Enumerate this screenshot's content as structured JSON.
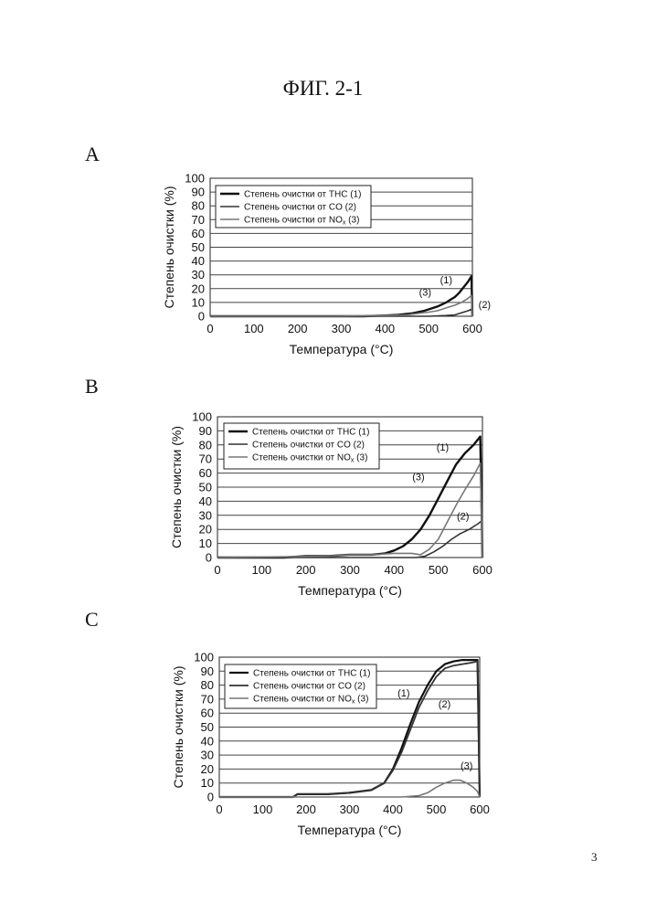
{
  "figure_title": "ФИГ. 2-1",
  "page_number": "3",
  "chart_data": [
    {
      "panel": "A",
      "type": "line",
      "xlabel": "Температура (°C)",
      "ylabel": "Степень очистки (%)",
      "xlim": [
        0,
        600
      ],
      "ylim": [
        0,
        100
      ],
      "xticks": [
        "0",
        "100",
        "200",
        "300",
        "400",
        "500",
        "600"
      ],
      "yticks": [
        "0",
        "10",
        "20",
        "30",
        "40",
        "50",
        "60",
        "70",
        "80",
        "90",
        "100"
      ],
      "grid": "horizontal",
      "legend_position": "top-left",
      "series": [
        {
          "name": "Степень очистки от THC (1)",
          "color": "#111111",
          "width": 2.4,
          "x": [
            0,
            250,
            300,
            350,
            400,
            430,
            460,
            490,
            520,
            540,
            560,
            570,
            580,
            590,
            598,
            600
          ],
          "y": [
            0,
            0,
            0,
            0,
            0.5,
            1,
            2,
            4,
            7,
            10,
            14,
            17,
            21,
            25,
            29,
            0
          ]
        },
        {
          "name": "Степень очистки от CO (2)",
          "color": "#333333",
          "width": 1.6,
          "x": [
            0,
            400,
            500,
            540,
            560,
            570,
            580,
            590,
            598,
            600
          ],
          "y": [
            0,
            0,
            0,
            0.5,
            1,
            2,
            3,
            4,
            5,
            0
          ]
        },
        {
          "name": "Степень очистки от NOx (3)",
          "color": "#777777",
          "width": 1.6,
          "x": [
            0,
            300,
            400,
            450,
            500,
            520,
            540,
            560,
            575,
            585,
            590,
            598,
            600
          ],
          "y": [
            0,
            0,
            0.5,
            1,
            3,
            4,
            6,
            8,
            10,
            12,
            13,
            15,
            0
          ]
        }
      ],
      "annotations": [
        {
          "text": "(1)",
          "x": 540,
          "y": 24
        },
        {
          "text": "(3)",
          "x": 492,
          "y": 15
        },
        {
          "text": "(2)",
          "x": 628,
          "y": 6
        }
      ],
      "legend_labels": [
        {
          "prefix": "Степень очистки от THC (1)",
          "sub": "",
          "suffix": ""
        },
        {
          "prefix": "Степень очистки от CO (2)",
          "sub": "",
          "suffix": ""
        },
        {
          "prefix": "Степень очистки от NO",
          "sub": "x",
          "suffix": " (3)"
        }
      ]
    },
    {
      "panel": "B",
      "type": "line",
      "xlabel": "Температура (°C)",
      "ylabel": "Степень очистки (%)",
      "xlim": [
        0,
        600
      ],
      "ylim": [
        0,
        100
      ],
      "xticks": [
        "0",
        "100",
        "200",
        "300",
        "400",
        "500",
        "600"
      ],
      "yticks": [
        "0",
        "10",
        "20",
        "30",
        "40",
        "50",
        "60",
        "70",
        "80",
        "90",
        "100"
      ],
      "grid": "horizontal",
      "legend_position": "top-left",
      "series": [
        {
          "name": "Степень очистки от THC (1)",
          "color": "#111111",
          "width": 2.4,
          "x": [
            0,
            150,
            200,
            250,
            300,
            330,
            350,
            380,
            400,
            420,
            440,
            460,
            480,
            500,
            520,
            540,
            560,
            580,
            595,
            600
          ],
          "y": [
            0,
            0,
            1,
            1,
            2,
            2,
            2,
            3,
            5,
            8,
            13,
            20,
            30,
            42,
            54,
            66,
            74,
            80,
            86,
            0
          ]
        },
        {
          "name": "Степень очистки от CO (2)",
          "color": "#333333",
          "width": 1.6,
          "x": [
            0,
            450,
            470,
            490,
            510,
            530,
            550,
            570,
            590,
            598,
            600
          ],
          "y": [
            0,
            0,
            1,
            4,
            8,
            13,
            17,
            20,
            24,
            26,
            0
          ]
        },
        {
          "name": "Степень очистки от NOx (3)",
          "color": "#777777",
          "width": 1.6,
          "x": [
            0,
            250,
            300,
            350,
            400,
            420,
            440,
            460,
            480,
            500,
            520,
            540,
            560,
            580,
            595,
            600
          ],
          "y": [
            0,
            1,
            2,
            2,
            3,
            3,
            3,
            2,
            6,
            13,
            25,
            37,
            48,
            58,
            67,
            0
          ]
        }
      ],
      "annotations": [
        {
          "text": "(1)",
          "x": 510,
          "y": 76
        },
        {
          "text": "(3)",
          "x": 455,
          "y": 55
        },
        {
          "text": "(2)",
          "x": 556,
          "y": 27
        }
      ],
      "legend_labels": [
        {
          "prefix": "Степень очистки от THC (1)",
          "sub": "",
          "suffix": ""
        },
        {
          "prefix": "Степень очистки от CO (2)",
          "sub": "",
          "suffix": ""
        },
        {
          "prefix": "Степень очистки от NO",
          "sub": "x",
          "suffix": " (3)"
        }
      ]
    },
    {
      "panel": "C",
      "type": "line",
      "xlabel": "Температура (°C)",
      "ylabel": "Степень очистки (%)",
      "xlim": [
        0,
        600
      ],
      "ylim": [
        0,
        100
      ],
      "xticks": [
        "0",
        "100",
        "200",
        "300",
        "400",
        "500",
        "600"
      ],
      "yticks": [
        "0",
        "10",
        "20",
        "30",
        "40",
        "50",
        "60",
        "70",
        "80",
        "90",
        "100"
      ],
      "grid": "horizontal",
      "legend_position": "top-left",
      "series": [
        {
          "name": "Степень очистки от THC (1)",
          "color": "#111111",
          "width": 2.2,
          "x": [
            0,
            170,
            180,
            250,
            300,
            350,
            380,
            400,
            420,
            440,
            460,
            480,
            500,
            520,
            540,
            560,
            580,
            595,
            600
          ],
          "y": [
            0,
            0,
            2,
            2,
            3,
            5,
            10,
            20,
            35,
            52,
            68,
            80,
            90,
            95,
            97,
            98,
            98,
            98,
            0
          ]
        },
        {
          "name": "Степень очистки от CO (2)",
          "color": "#333333",
          "width": 1.8,
          "x": [
            0,
            170,
            180,
            250,
            300,
            350,
            380,
            400,
            420,
            440,
            460,
            480,
            500,
            520,
            540,
            560,
            580,
            595,
            600
          ],
          "y": [
            0,
            0,
            2,
            2,
            3,
            5,
            10,
            19,
            32,
            48,
            64,
            76,
            86,
            92,
            94,
            95,
            96,
            97,
            0
          ]
        },
        {
          "name": "Степень очистки от NOx (3)",
          "color": "#777777",
          "width": 1.6,
          "x": [
            0,
            420,
            460,
            480,
            500,
            520,
            540,
            555,
            570,
            585,
            595,
            600
          ],
          "y": [
            0,
            0,
            1,
            3,
            7,
            10,
            12,
            12,
            10,
            7,
            4,
            0
          ]
        }
      ],
      "annotations": [
        {
          "text": "(1)",
          "x": 425,
          "y": 72
        },
        {
          "text": "(2)",
          "x": 519,
          "y": 64
        },
        {
          "text": "(3)",
          "x": 570,
          "y": 20
        }
      ],
      "legend_labels": [
        {
          "prefix": "Степень очистки от THC (1)",
          "sub": "",
          "suffix": ""
        },
        {
          "prefix": "Степень очистки от CO (2)",
          "sub": "",
          "suffix": ""
        },
        {
          "prefix": "Степень очистки от NO",
          "sub": "x",
          "suffix": " (3)"
        }
      ]
    }
  ]
}
